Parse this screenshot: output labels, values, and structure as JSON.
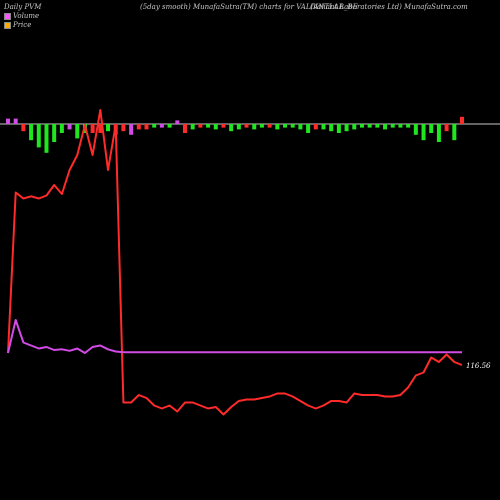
{
  "header": {
    "left": "Daily PVM",
    "center": "(5day smooth) MunafaSutra(TM) charts for VALIANTLAB_BE",
    "right": "(Valiant Laboratories Ltd) MunafaSutra.com"
  },
  "legend": [
    {
      "label": "Volume",
      "color": "#ff55ff"
    },
    {
      "label": "Price",
      "color": "#ffaa00"
    }
  ],
  "colors": {
    "price_line": "#ff2a2a",
    "smooth_line": "#d24be6",
    "up_bar": "#1fe61f",
    "down_bar": "#ff2a2a",
    "neutral_bar": "#d24be6",
    "baseline": "#c8c8c8"
  },
  "chart_data": {
    "type": "line",
    "price_label": "116.56",
    "series": [
      {
        "values": [
          116,
          330,
          322,
          325,
          322,
          326,
          340,
          328,
          360,
          380,
          420,
          380,
          440,
          360,
          420,
          50,
          50,
          60,
          56,
          46,
          42,
          46,
          38,
          50,
          50,
          46,
          42,
          44,
          34,
          44,
          52,
          54,
          54,
          56,
          58,
          62,
          62,
          58,
          52,
          46,
          42,
          46,
          52,
          52,
          50,
          62,
          60,
          60,
          60,
          58,
          58,
          60,
          70,
          86,
          90,
          110,
          104,
          114,
          104,
          100
        ]
      },
      {
        "values": [
          116,
          160,
          130,
          126,
          122,
          124,
          120,
          121,
          119,
          122,
          116,
          124,
          126,
          121,
          118,
          117,
          117,
          117,
          117,
          117,
          117,
          117,
          117,
          117,
          117,
          117,
          117,
          117,
          117,
          117,
          117,
          117,
          117,
          117,
          117,
          117,
          117,
          117,
          117,
          117,
          117,
          117,
          117,
          117,
          117,
          117,
          117,
          117,
          117,
          117,
          117,
          117,
          117,
          117,
          117,
          117,
          117,
          117,
          117,
          117
        ]
      }
    ],
    "volume_bars": [
      0.3,
      0.3,
      -0.4,
      -0.9,
      -1.3,
      -1.6,
      -1.0,
      -0.5,
      -0.3,
      -0.8,
      -0.5,
      -0.5,
      -0.5,
      -0.4,
      -0.6,
      -0.4,
      -0.6,
      -0.3,
      -0.3,
      -0.2,
      -0.2,
      -0.2,
      0.2,
      -0.5,
      -0.3,
      -0.2,
      -0.2,
      -0.3,
      -0.2,
      -0.4,
      -0.3,
      -0.2,
      -0.3,
      -0.2,
      -0.2,
      -0.3,
      -0.2,
      -0.2,
      -0.3,
      -0.5,
      -0.3,
      -0.3,
      -0.4,
      -0.5,
      -0.4,
      -0.3,
      -0.2,
      -0.2,
      -0.2,
      -0.3,
      -0.2,
      -0.2,
      -0.2,
      -0.6,
      -0.9,
      -0.5,
      -1.0,
      -0.4,
      -0.9,
      0.4
    ],
    "volume_colors": [
      "neutral",
      "neutral",
      "down",
      "up",
      "up",
      "up",
      "up",
      "up",
      "neutral",
      "up",
      "up",
      "down",
      "down",
      "up",
      "down",
      "down",
      "neutral",
      "down",
      "down",
      "up",
      "neutral",
      "up",
      "neutral",
      "down",
      "up",
      "down",
      "up",
      "up",
      "down",
      "up",
      "up",
      "down",
      "up",
      "up",
      "down",
      "up",
      "up",
      "up",
      "up",
      "up",
      "down",
      "up",
      "up",
      "up",
      "up",
      "up",
      "up",
      "up",
      "up",
      "up",
      "up",
      "up",
      "up",
      "up",
      "up",
      "up",
      "up",
      "down",
      "up",
      "down"
    ]
  }
}
